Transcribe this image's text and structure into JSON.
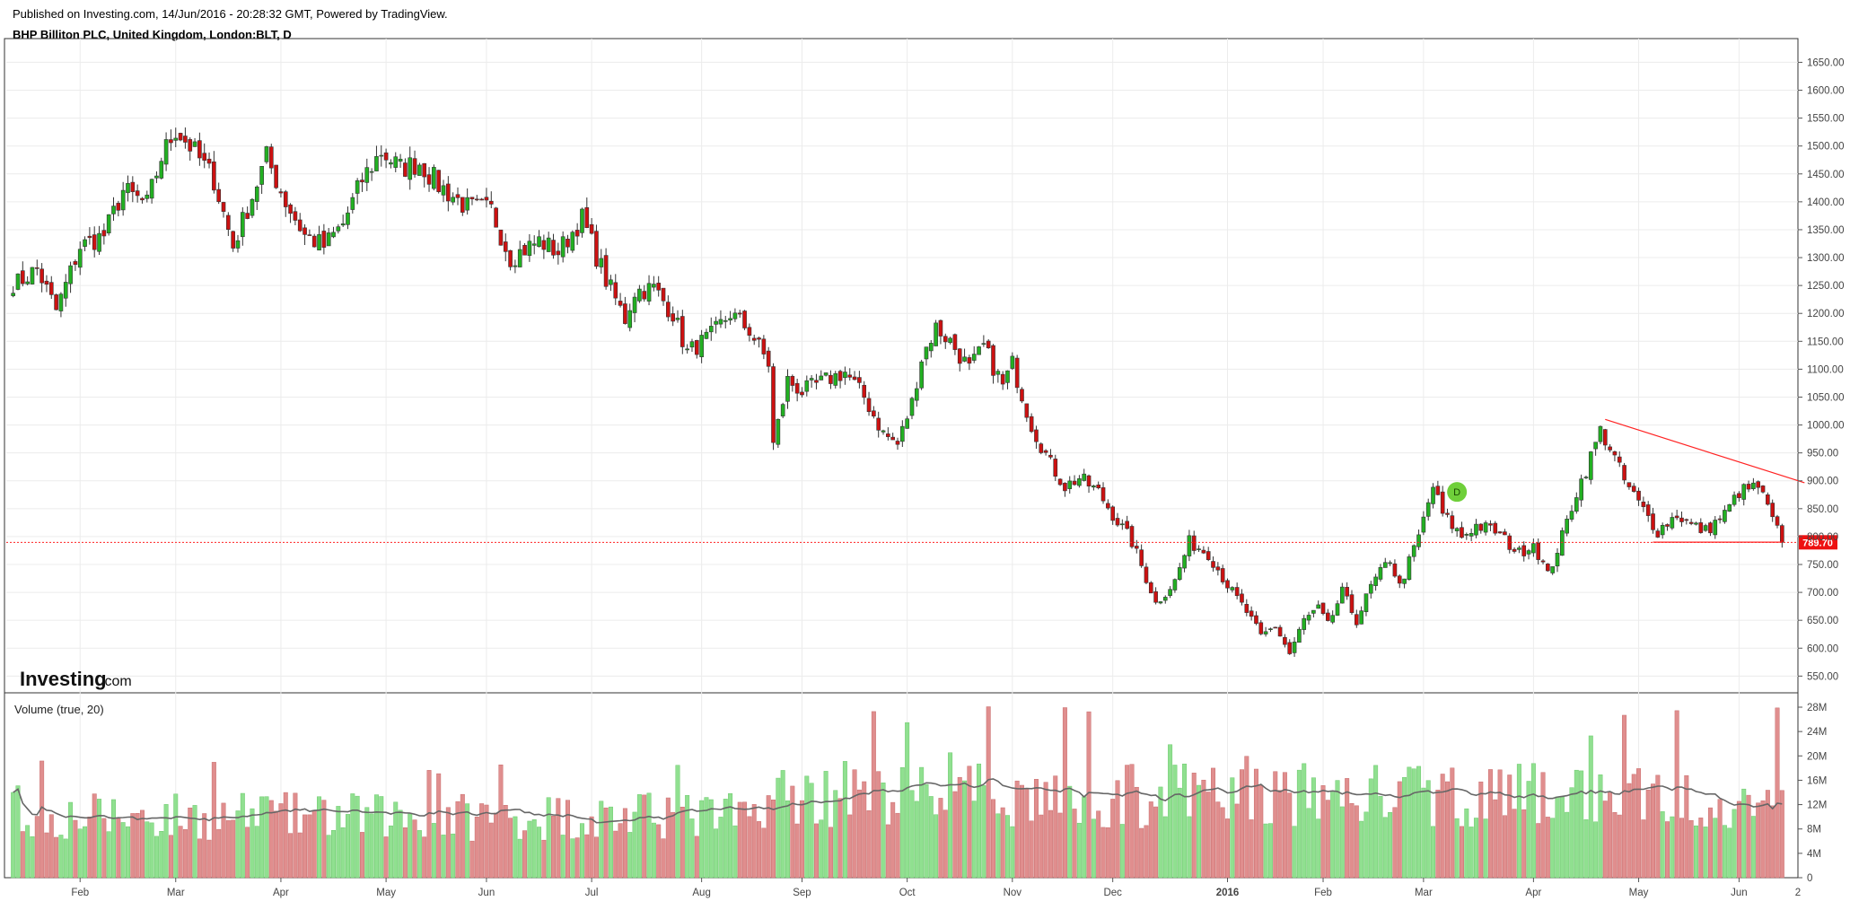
{
  "header": {
    "published": "Published on Investing.com, 14/Jun/2016 - 20:28:32 GMT, Powered by TradingView.",
    "symbol": "BHP Billiton PLC, United Kingdom, London:BLT, D"
  },
  "logo": {
    "brand": "Investing",
    "suffix": ".com"
  },
  "volume_title": "Volume (true, 20)",
  "event_marker": "D",
  "colors": {
    "up": "#22b022",
    "down": "#cc1111",
    "vol_up": "#90e090",
    "vol_down": "#e08e8e",
    "ma": "#666666",
    "price_line": "#ff2222",
    "trend": "#ff2222",
    "badge": "#6fcf3a"
  },
  "chart_data": [
    {
      "type": "candlestick",
      "title": "BHP Billiton PLC, United Kingdom, London:BLT, D",
      "ylim": [
        520,
        1670
      ],
      "y_ticks": [
        "1650.00",
        "1600.00",
        "1550.00",
        "1500.00",
        "1450.00",
        "1400.00",
        "1350.00",
        "1300.00",
        "1250.00",
        "1200.00",
        "1150.00",
        "1100.00",
        "1050.00",
        "1000.00",
        "950.00",
        "900.00",
        "850.00",
        "800.00",
        "750.00",
        "700.00",
        "650.00",
        "600.00",
        "550.00"
      ],
      "x_ticks": [
        "Feb",
        "Mar",
        "Apr",
        "May",
        "Jun",
        "Jul",
        "Aug",
        "Sep",
        "Oct",
        "Nov",
        "Dec",
        "2016",
        "Feb",
        "Mar",
        "Apr",
        "May",
        "Jun",
        "2"
      ],
      "last_price": "789.70",
      "anchors": [
        [
          "2015-01-14",
          1255
        ],
        [
          "2015-01-20",
          1280
        ],
        [
          "2015-01-26",
          1205
        ],
        [
          "2015-02-02",
          1320
        ],
        [
          "2015-02-09",
          1340
        ],
        [
          "2015-02-13",
          1420
        ],
        [
          "2015-02-20",
          1395
        ],
        [
          "2015-02-25",
          1480
        ],
        [
          "2015-03-02",
          1530
        ],
        [
          "2015-03-05",
          1500
        ],
        [
          "2015-03-12",
          1440
        ],
        [
          "2015-03-18",
          1320
        ],
        [
          "2015-03-24",
          1410
        ],
        [
          "2015-03-27",
          1480
        ],
        [
          "2015-04-02",
          1400
        ],
        [
          "2015-04-08",
          1340
        ],
        [
          "2015-04-14",
          1320
        ],
        [
          "2015-04-20",
          1360
        ],
        [
          "2015-04-24",
          1440
        ],
        [
          "2015-04-30",
          1490
        ],
        [
          "2015-05-06",
          1460
        ],
        [
          "2015-05-12",
          1470
        ],
        [
          "2015-05-18",
          1430
        ],
        [
          "2015-05-26",
          1390
        ],
        [
          "2015-06-02",
          1385
        ],
        [
          "2015-06-08",
          1300
        ],
        [
          "2015-06-16",
          1330
        ],
        [
          "2015-06-22",
          1310
        ],
        [
          "2015-06-29",
          1370
        ],
        [
          "2015-07-06",
          1260
        ],
        [
          "2015-07-10",
          1190
        ],
        [
          "2015-07-14",
          1240
        ],
        [
          "2015-07-20",
          1245
        ],
        [
          "2015-07-24",
          1200
        ],
        [
          "2015-07-29",
          1130
        ],
        [
          "2015-08-05",
          1160
        ],
        [
          "2015-08-11",
          1200
        ],
        [
          "2015-08-17",
          1170
        ],
        [
          "2015-08-21",
          1110
        ],
        [
          "2015-08-24",
          965
        ],
        [
          "2015-08-27",
          1080
        ],
        [
          "2015-09-01",
          1060
        ],
        [
          "2015-09-08",
          1080
        ],
        [
          "2015-09-14",
          1095
        ],
        [
          "2015-09-18",
          1050
        ],
        [
          "2015-09-24",
          985
        ],
        [
          "2015-09-29",
          965
        ],
        [
          "2015-10-02",
          1040
        ],
        [
          "2015-10-06",
          1120
        ],
        [
          "2015-10-09",
          1175
        ],
        [
          "2015-10-14",
          1150
        ],
        [
          "2015-10-20",
          1100
        ],
        [
          "2015-10-23",
          1140
        ],
        [
          "2015-10-29",
          1070
        ],
        [
          "2015-11-02",
          1110
        ],
        [
          "2015-11-06",
          1000
        ],
        [
          "2015-11-12",
          930
        ],
        [
          "2015-11-17",
          890
        ],
        [
          "2015-11-20",
          905
        ],
        [
          "2015-11-26",
          880
        ],
        [
          "2015-12-01",
          840
        ],
        [
          "2015-12-07",
          790
        ],
        [
          "2015-12-11",
          705
        ],
        [
          "2015-12-14",
          680
        ],
        [
          "2015-12-18",
          720
        ],
        [
          "2015-12-23",
          790
        ],
        [
          "2015-12-29",
          770
        ],
        [
          "2016-01-05",
          700
        ],
        [
          "2016-01-08",
          665
        ],
        [
          "2016-01-13",
          620
        ],
        [
          "2016-01-18",
          640
        ],
        [
          "2016-01-21",
          590
        ],
        [
          "2016-01-26",
          650
        ],
        [
          "2016-01-29",
          670
        ],
        [
          "2016-02-02",
          640
        ],
        [
          "2016-02-05",
          700
        ],
        [
          "2016-02-10",
          650
        ],
        [
          "2016-02-15",
          710
        ],
        [
          "2016-02-19",
          760
        ],
        [
          "2016-02-23",
          710
        ],
        [
          "2016-02-29",
          800
        ],
        [
          "2016-03-03",
          890
        ],
        [
          "2016-03-07",
          840
        ],
        [
          "2016-03-11",
          800
        ],
        [
          "2016-03-16",
          820
        ],
        [
          "2016-03-22",
          810
        ],
        [
          "2016-03-29",
          770
        ],
        [
          "2016-04-01",
          790
        ],
        [
          "2016-04-06",
          730
        ],
        [
          "2016-04-11",
          800
        ],
        [
          "2016-04-14",
          880
        ],
        [
          "2016-04-18",
          920
        ],
        [
          "2016-04-21",
          990
        ],
        [
          "2016-04-25",
          960
        ],
        [
          "2016-04-28",
          900
        ],
        [
          "2016-05-03",
          860
        ],
        [
          "2016-05-09",
          810
        ],
        [
          "2016-05-13",
          840
        ],
        [
          "2016-05-18",
          820
        ],
        [
          "2016-05-23",
          810
        ],
        [
          "2016-05-27",
          840
        ],
        [
          "2016-06-01",
          880
        ],
        [
          "2016-06-07",
          890
        ],
        [
          "2016-06-10",
          830
        ],
        [
          "2016-06-14",
          790
        ]
      ],
      "trendline": [
        [
          "2016-04-22",
          1010
        ],
        [
          "2016-06-17",
          890
        ]
      ],
      "support_line": [
        [
          "2016-05-06",
          790
        ],
        [
          "2016-06-14",
          790
        ]
      ]
    },
    {
      "type": "bar",
      "title": "Volume (true, 20)",
      "ylim": [
        0,
        28
      ],
      "y_ticks": [
        "28M",
        "24M",
        "20M",
        "16M",
        "12M",
        "8M",
        "4M",
        "0"
      ]
    }
  ]
}
